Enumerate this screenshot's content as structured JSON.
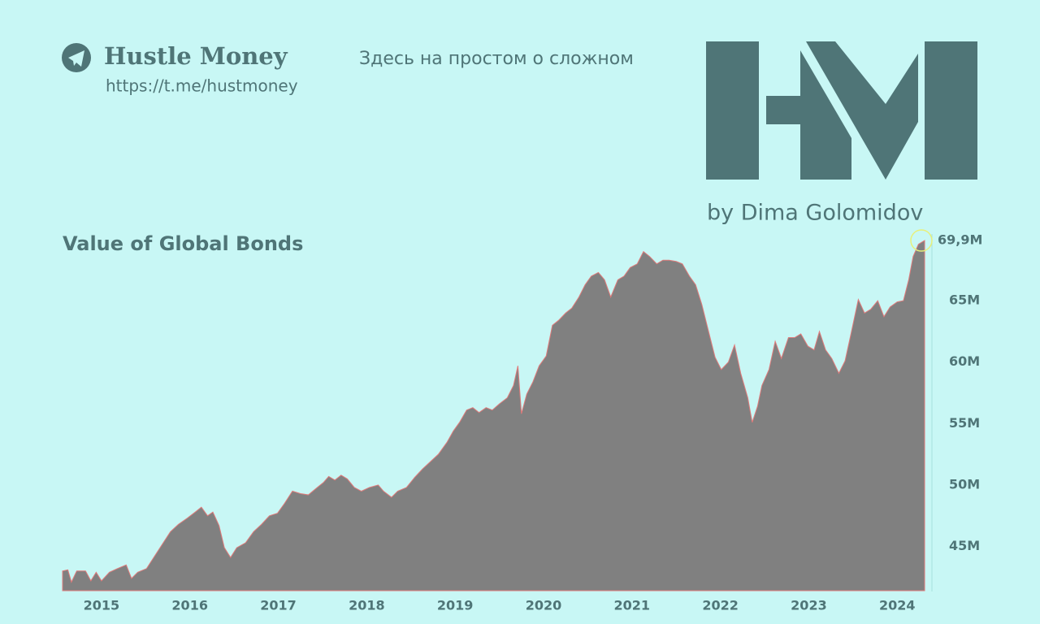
{
  "header": {
    "brand": "Hustle Money",
    "url": "https://t.me/hustmoney",
    "tagline": "Здесь на простом о сложном",
    "author": "by Dima Golomidov"
  },
  "chart_data": {
    "type": "area",
    "title": "Value of Global Bonds",
    "color": "#808080",
    "x": [
      2014.56,
      2014.62,
      2014.66,
      2014.72,
      2014.82,
      2014.88,
      2014.94,
      2015.0,
      2015.09,
      2015.18,
      2015.28,
      2015.34,
      2015.41,
      2015.51,
      2015.6,
      2015.69,
      2015.78,
      2015.87,
      2015.97,
      2016.06,
      2016.13,
      2016.2,
      2016.26,
      2016.33,
      2016.39,
      2016.46,
      2016.53,
      2016.63,
      2016.72,
      2016.81,
      2016.9,
      2016.99,
      2017.07,
      2017.16,
      2017.25,
      2017.34,
      2017.44,
      2017.51,
      2017.57,
      2017.64,
      2017.71,
      2017.78,
      2017.86,
      2017.94,
      2018.03,
      2018.13,
      2018.19,
      2018.28,
      2018.35,
      2018.45,
      2018.54,
      2018.63,
      2018.72,
      2018.81,
      2018.91,
      2018.98,
      2019.05,
      2019.13,
      2019.2,
      2019.27,
      2019.35,
      2019.42,
      2019.5,
      2019.59,
      2019.66,
      2019.71,
      2019.75,
      2019.81,
      2019.88,
      2019.95,
      2020.03,
      2020.1,
      2020.17,
      2020.25,
      2020.32,
      2020.4,
      2020.47,
      2020.54,
      2020.62,
      2020.69,
      2020.76,
      2020.84,
      2020.91,
      2020.98,
      2021.06,
      2021.13,
      2021.2,
      2021.28,
      2021.35,
      2021.42,
      2021.5,
      2021.57,
      2021.65,
      2021.72,
      2021.79,
      2021.87,
      2021.94,
      2022.01,
      2022.09,
      2022.16,
      2022.23,
      2022.31,
      2022.36,
      2022.42,
      2022.47,
      2022.55,
      2022.62,
      2022.69,
      2022.77,
      2022.84,
      2022.91,
      2022.99,
      2023.06,
      2023.12,
      2023.19,
      2023.26,
      2023.34,
      2023.41,
      2023.48,
      2023.56,
      2023.63,
      2023.7,
      2023.78,
      2023.85,
      2023.92,
      2024.0,
      2024.07,
      2024.13,
      2024.18,
      2024.24,
      2024.31
    ],
    "values": [
      43.0,
      43.1,
      42.1,
      43.0,
      43.0,
      42.2,
      42.9,
      42.2,
      42.9,
      43.2,
      43.5,
      42.4,
      42.9,
      43.2,
      44.2,
      45.2,
      46.2,
      46.8,
      47.3,
      47.8,
      48.2,
      47.5,
      47.8,
      46.7,
      44.9,
      44.1,
      44.9,
      45.3,
      46.2,
      46.8,
      47.5,
      47.7,
      48.5,
      49.5,
      49.3,
      49.2,
      49.8,
      50.2,
      50.7,
      50.4,
      50.8,
      50.5,
      49.8,
      49.5,
      49.8,
      50.0,
      49.5,
      49.0,
      49.5,
      49.8,
      50.6,
      51.3,
      51.9,
      52.5,
      53.5,
      54.4,
      55.1,
      56.1,
      56.3,
      55.9,
      56.3,
      56.1,
      56.6,
      57.1,
      58.1,
      59.7,
      55.8,
      57.4,
      58.4,
      59.7,
      60.5,
      63.0,
      63.4,
      64.0,
      64.4,
      65.3,
      66.3,
      67.0,
      67.3,
      66.7,
      65.3,
      66.7,
      67.0,
      67.7,
      68.0,
      69.0,
      68.6,
      68.0,
      68.3,
      68.3,
      68.2,
      68.0,
      67.0,
      66.3,
      64.7,
      62.4,
      60.4,
      59.4,
      60.0,
      61.4,
      59.1,
      57.1,
      55.1,
      56.4,
      58.1,
      59.4,
      61.7,
      60.3,
      62.0,
      62.0,
      62.3,
      61.3,
      61.0,
      62.5,
      61.0,
      60.3,
      59.1,
      60.1,
      62.4,
      65.1,
      64.0,
      64.3,
      65.0,
      63.7,
      64.5,
      64.9,
      65.0,
      66.7,
      68.6,
      69.6,
      69.9
    ],
    "end_label": {
      "value": 69.9,
      "label": "69,9M"
    },
    "xlim": [
      2014.56,
      2024.31
    ],
    "xticks": [
      2015,
      2016,
      2017,
      2018,
      2019,
      2020,
      2021,
      2022,
      2023,
      2024
    ],
    "ylim": [
      41.4,
      70.2
    ],
    "yticks": [
      {
        "value": 45,
        "label": "45M"
      },
      {
        "value": 50,
        "label": "50M"
      },
      {
        "value": 55,
        "label": "55M"
      },
      {
        "value": 60,
        "label": "60M"
      },
      {
        "value": 65,
        "label": "65M"
      }
    ],
    "grid": false
  }
}
